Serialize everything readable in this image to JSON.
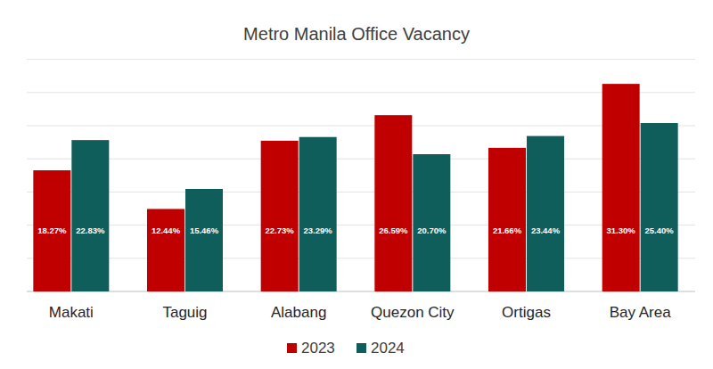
{
  "chart_data": {
    "type": "bar",
    "title": "Metro Manila Office Vacancy",
    "categories": [
      "Makati",
      "Taguig",
      "Alabang",
      "Quezon City",
      "Ortigas",
      "Bay Area"
    ],
    "series": [
      {
        "name": "2023",
        "color": "#c00000",
        "values": [
          18.27,
          12.44,
          22.73,
          26.59,
          21.66,
          31.3
        ],
        "value_labels": [
          "18.27%",
          "12.44%",
          "22.73%",
          "26.59%",
          "21.66%",
          "31.30%"
        ]
      },
      {
        "name": "2024",
        "color": "#0f5e5b",
        "values": [
          22.83,
          15.46,
          23.29,
          20.7,
          23.44,
          25.4
        ],
        "value_labels": [
          "22.83%",
          "15.46%",
          "23.29%",
          "20.70%",
          "23.44%",
          "25.40%"
        ]
      }
    ],
    "ylim": [
      0,
      35
    ],
    "yticks": [
      0,
      5,
      10,
      15,
      20,
      25,
      30,
      35
    ],
    "grid": true,
    "data_labels": true,
    "tick_labels": "x",
    "legend": "bottom"
  }
}
